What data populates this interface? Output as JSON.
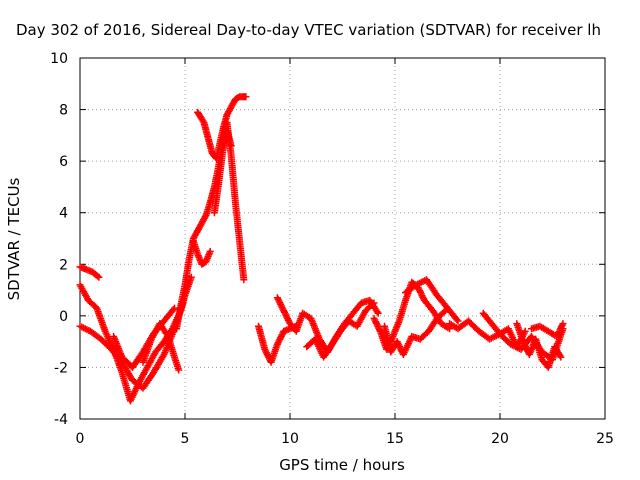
{
  "chart_data": {
    "type": "scatter",
    "title": "Day 302 of 2016, Sidereal Day-to-day VTEC variation (SDTVAR) for receiver lh",
    "xlabel": "GPS time / hours",
    "ylabel": "SDTVAR / TECUs",
    "xlim": [
      0,
      25
    ],
    "ylim": [
      -4,
      10
    ],
    "xticks": [
      "0",
      "5",
      "10",
      "15",
      "20",
      "25"
    ],
    "yticks": [
      "-4",
      "-2",
      "0",
      "2",
      "4",
      "6",
      "8",
      "10"
    ],
    "grid": true,
    "marker": "+",
    "series": [
      {
        "name": "SDTVAR",
        "color": "#ff0000",
        "tracks": [
          {
            "x": [
              0.0,
              0.3,
              0.6,
              0.9
            ],
            "y": [
              1.9,
              1.8,
              1.7,
              1.5
            ]
          },
          {
            "x": [
              0.0,
              0.4,
              0.8,
              1.2,
              1.6,
              2.0,
              2.4,
              2.8,
              3.2,
              3.6,
              4.0,
              4.4,
              4.8,
              5.0,
              5.3
            ],
            "y": [
              1.2,
              0.6,
              0.3,
              -0.6,
              -1.3,
              -2.2,
              -3.3,
              -2.6,
              -2.0,
              -1.4,
              -1.0,
              -0.5,
              0.2,
              0.8,
              1.5
            ]
          },
          {
            "x": [
              0.0,
              0.5,
              1.0,
              1.5,
              2.0,
              2.5,
              3.0,
              3.5,
              4.0,
              4.5,
              4.9
            ],
            "y": [
              -0.4,
              -0.6,
              -0.9,
              -1.3,
              -1.8,
              -2.5,
              -2.8,
              -2.2,
              -1.5,
              -0.5,
              0.5
            ]
          },
          {
            "x": [
              1.6,
              2.0,
              2.5,
              3.0,
              3.5,
              4.0,
              4.5
            ],
            "y": [
              -0.8,
              -1.6,
              -2.0,
              -1.4,
              -0.7,
              -0.2,
              0.3
            ]
          },
          {
            "x": [
              3.0,
              3.4,
              3.8,
              4.2,
              4.5,
              4.7
            ],
            "y": [
              -1.8,
              -0.9,
              -0.3,
              -0.8,
              -1.6,
              -2.1
            ]
          },
          {
            "x": [
              4.6,
              4.8,
              5.0,
              5.2,
              5.4,
              5.6,
              5.8,
              6.0,
              6.2,
              6.4,
              6.6,
              6.8,
              7.0,
              7.2,
              7.4,
              7.6,
              7.8
            ],
            "y": [
              -0.5,
              0.4,
              1.2,
              2.2,
              3.0,
              3.3,
              3.6,
              3.9,
              4.4,
              5.0,
              5.8,
              6.7,
              7.5,
              6.2,
              4.4,
              2.9,
              1.4
            ]
          },
          {
            "x": [
              5.4,
              5.6,
              5.8,
              6.0,
              6.2
            ],
            "y": [
              2.9,
              2.4,
              2.0,
              2.1,
              2.5
            ]
          },
          {
            "x": [
              5.6,
              5.9,
              6.1,
              6.3,
              6.5,
              6.8,
              7.0,
              7.2,
              7.4,
              7.6,
              7.8,
              7.9
            ],
            "y": [
              7.9,
              7.5,
              6.9,
              6.3,
              6.1,
              7.2,
              7.8,
              8.1,
              8.4,
              8.5,
              8.5,
              8.5
            ]
          },
          {
            "x": [
              6.4,
              6.6,
              6.8,
              7.0,
              7.2
            ],
            "y": [
              4.0,
              5.1,
              6.4,
              7.2,
              6.6
            ]
          },
          {
            "x": [
              8.5,
              8.8,
              9.1,
              9.4,
              9.7,
              10.0,
              10.3
            ],
            "y": [
              -0.4,
              -1.3,
              -1.8,
              -1.1,
              -0.6,
              -0.5,
              -0.4
            ]
          },
          {
            "x": [
              9.4,
              9.7,
              10.0,
              10.3,
              10.6,
              11.0,
              11.4,
              11.8,
              12.2,
              12.6,
              13.0,
              13.4,
              13.8,
              14.2
            ],
            "y": [
              0.7,
              0.2,
              -0.3,
              -0.6,
              0.1,
              -0.1,
              -0.9,
              -1.4,
              -0.8,
              -0.3,
              0.1,
              0.5,
              0.6,
              0.1
            ]
          },
          {
            "x": [
              10.8,
              11.2,
              11.6,
              12.0,
              12.4,
              12.8,
              13.2,
              13.6,
              14.0
            ],
            "y": [
              -1.2,
              -0.9,
              -1.6,
              -1.1,
              -0.6,
              -0.2,
              -0.4,
              0.2,
              0.5
            ]
          },
          {
            "x": [
              14.0,
              14.3,
              14.6,
              14.9,
              15.2,
              15.5,
              15.8,
              16.1,
              16.4,
              16.8,
              17.2,
              17.6
            ],
            "y": [
              -0.1,
              -0.6,
              -1.3,
              -0.8,
              -0.2,
              0.6,
              1.3,
              1.1,
              0.6,
              0.2,
              -0.3,
              -0.5
            ]
          },
          {
            "x": [
              14.5,
              14.8,
              15.1,
              15.4,
              15.8,
              16.2,
              16.6,
              17.0,
              17.4
            ],
            "y": [
              -0.4,
              -1.4,
              -1.0,
              -1.5,
              -0.8,
              -0.9,
              -0.6,
              -0.1,
              0.2
            ]
          },
          {
            "x": [
              15.5,
              16.0,
              16.5,
              17.0,
              17.5,
              18.0
            ],
            "y": [
              0.9,
              1.2,
              1.4,
              0.8,
              0.3,
              -0.2
            ]
          },
          {
            "x": [
              17.6,
              18.0,
              18.5,
              19.0,
              19.5,
              20.0,
              20.5,
              21.0,
              21.5,
              22.0,
              22.5,
              23.0
            ],
            "y": [
              -0.3,
              -0.5,
              -0.2,
              -0.6,
              -0.9,
              -0.7,
              -1.1,
              -1.3,
              -0.8,
              -1.4,
              -1.7,
              -0.5
            ]
          },
          {
            "x": [
              19.2,
              19.6,
              20.0,
              20.4,
              20.8,
              21.2
            ],
            "y": [
              0.1,
              -0.3,
              -0.7,
              -0.5,
              -1.2,
              -0.6
            ]
          },
          {
            "x": [
              20.8,
              21.1,
              21.4,
              21.7,
              22.0,
              22.3,
              22.6,
              22.9
            ],
            "y": [
              -0.3,
              -1.0,
              -1.5,
              -0.9,
              -1.7,
              -2.0,
              -1.2,
              -1.6
            ]
          },
          {
            "x": [
              21.5,
              21.9,
              22.3,
              22.7,
              23.0
            ],
            "y": [
              -0.5,
              -0.4,
              -0.6,
              -0.8,
              -0.3
            ]
          }
        ]
      }
    ]
  }
}
